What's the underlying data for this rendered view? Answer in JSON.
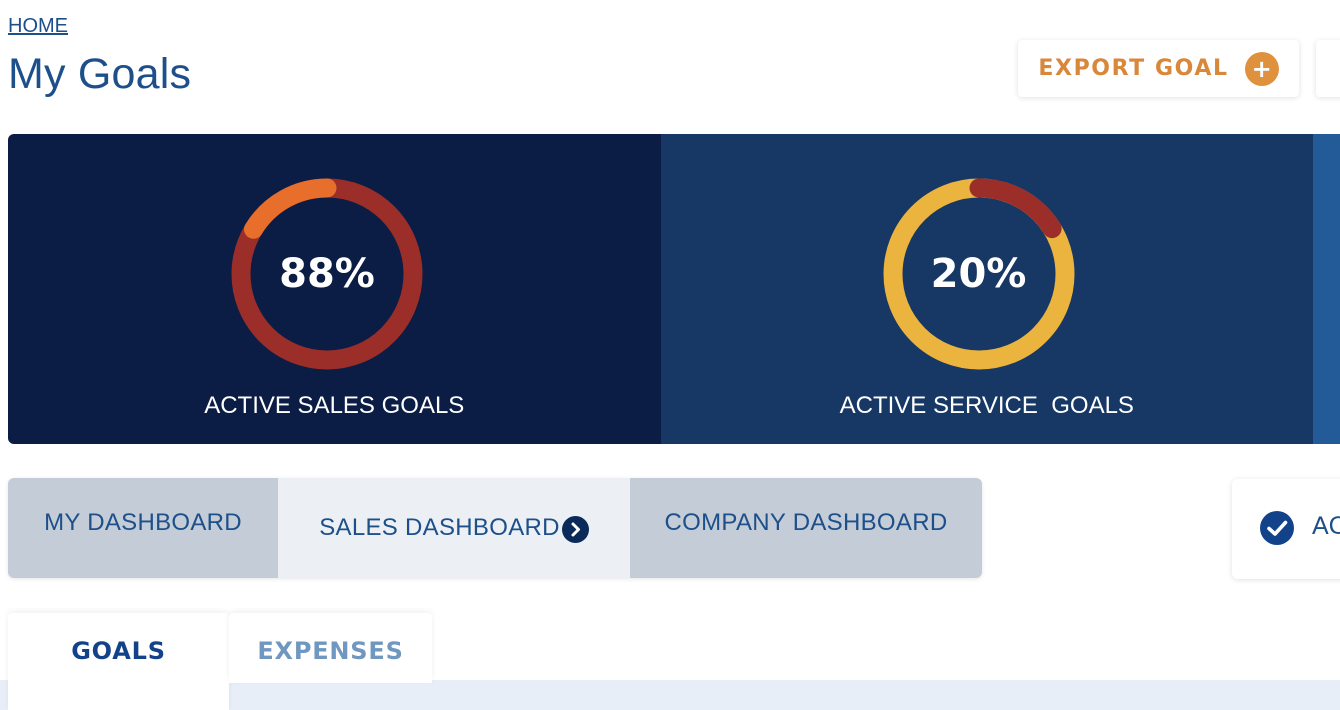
{
  "breadcrumb": {
    "home": "HOME"
  },
  "page": {
    "title": "My Goals"
  },
  "toolbar": {
    "export_label": "EXPORT GOAL",
    "export_icon": "plus-circle-icon"
  },
  "stats": [
    {
      "value_label": "88%",
      "value": 88,
      "label": "ACTIVE SALES GOALS",
      "ring_color": "#9b2e28",
      "accent_color": "#e86e2b"
    },
    {
      "value_label": "20%",
      "value": 20,
      "label": "ACTIVE SERVICE  GOALS",
      "ring_color": "#ebb43e",
      "accent_color": "#9b2e28"
    }
  ],
  "dashboards": {
    "tabs": [
      {
        "label": "MY DASHBOARD"
      },
      {
        "label": "SALES DASHBOARD",
        "icon": "chevron-right-circle-icon",
        "selected": true
      },
      {
        "label": "COMPANY DASHBOARD"
      }
    ]
  },
  "filter": {
    "label": "AC",
    "icon": "check-circle-icon"
  },
  "content_tabs": [
    {
      "label": "GOALS",
      "selected": true
    },
    {
      "label": "EXPENSES"
    }
  ],
  "colors": {
    "title_blue": "#1d4f8a",
    "export_orange": "#d9873b",
    "panel_dark": "#0b1d45",
    "panel_mid": "#173765",
    "panel_light": "#235a98",
    "tab_gray": "#c3ccd7",
    "tab_selected": "#ecf0f4"
  }
}
